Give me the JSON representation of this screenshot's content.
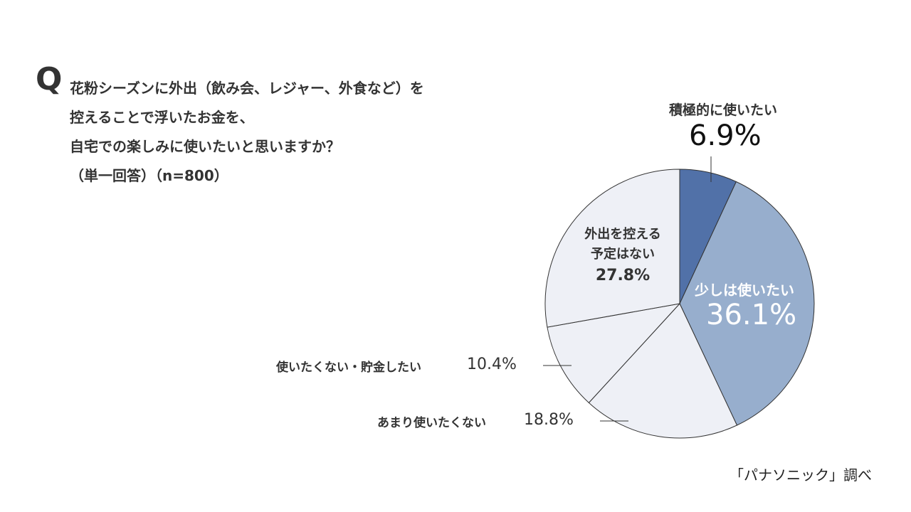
{
  "question": {
    "mark": "Q",
    "lines": [
      "花粉シーズンに外出（飲み会、レジャー、外食など）を",
      "控えることで浮いたお金を、",
      "自宅での楽しみに使いたいと思いますか？",
      "（単一回答）（n=800）"
    ]
  },
  "source": "「パナソニック」調べ",
  "chart_data": {
    "type": "pie",
    "start": "top",
    "direction": "clockwise",
    "categories": [
      "積極的に使いたい",
      "少しは使いたい",
      "あまり使いたくない",
      "使いたくない・貯金したい",
      "外出を控える予定はない"
    ],
    "values": [
      6.9,
      36.1,
      18.8,
      10.4,
      27.8
    ],
    "value_labels": [
      "6.9%",
      "36.1%",
      "18.8%",
      "10.4%",
      "27.8%"
    ],
    "colors": [
      "#5171a8",
      "#97aecd",
      "#eef0f6",
      "#eef0f6",
      "#eef0f6"
    ],
    "label_lines": {
      "4": [
        "外出を控える",
        "予定はない"
      ]
    }
  }
}
